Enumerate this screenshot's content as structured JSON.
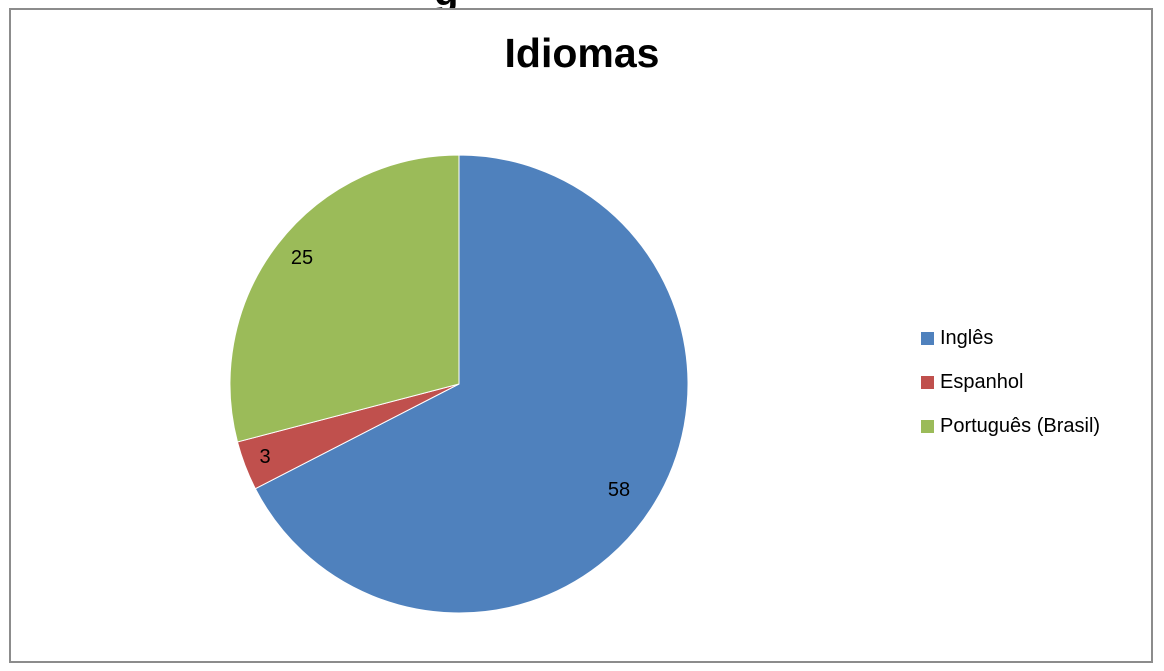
{
  "chart_data": {
    "type": "pie",
    "title": "Idiomas",
    "categories": [
      "Inglês",
      "Espanhol",
      "Português (Brasil)"
    ],
    "values": [
      58,
      3,
      25
    ],
    "colors": [
      "#4f81bd",
      "#c0504d",
      "#9bbb59"
    ],
    "data_labels": [
      "58",
      "3",
      "25"
    ],
    "legend_position": "right",
    "start_angle": "top, clockwise"
  },
  "header_fragment": "g"
}
